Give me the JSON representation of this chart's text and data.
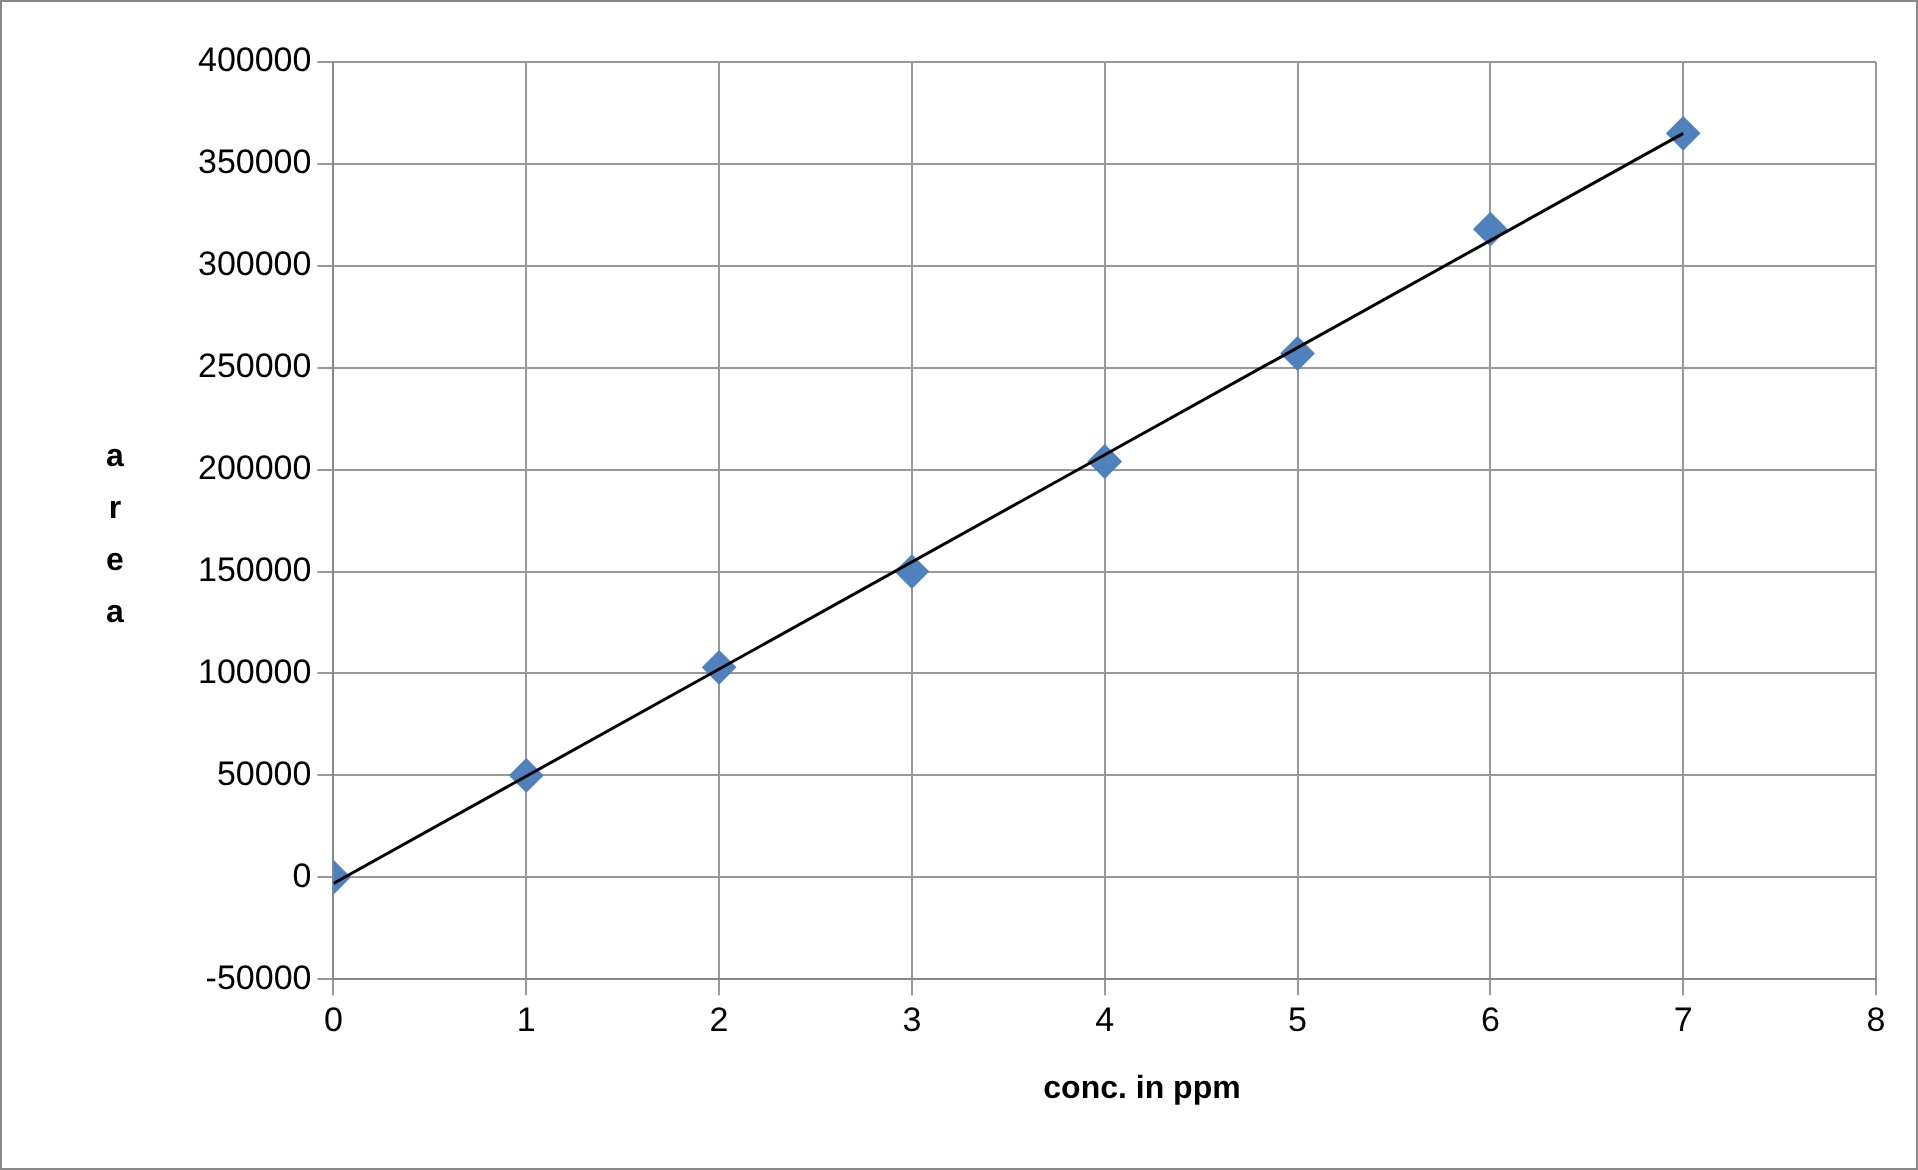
{
  "chart_data": {
    "type": "scatter",
    "xlabel": "conc. in ppm",
    "ylabel": "area",
    "series": [
      {
        "type": "scatter",
        "color": "#4f81bd",
        "x": [
          0,
          1,
          2,
          3,
          4,
          5,
          6,
          7
        ],
        "values": [
          0,
          50000,
          103000,
          150000,
          204000,
          257000,
          318000,
          365000
        ],
        "marker": "diamond"
      },
      {
        "type": "line",
        "color": "#000000",
        "x": [
          0,
          7
        ],
        "values": [
          -3000,
          365000
        ],
        "marker": "none",
        "line_style": "solid"
      }
    ],
    "xlim": [
      0,
      8
    ],
    "xticks": [
      0,
      1,
      2,
      3,
      4,
      5,
      6,
      7,
      8
    ],
    "ylim": [
      -50000,
      400000
    ],
    "yticks": [
      -50000,
      0,
      50000,
      100000,
      150000,
      200000,
      250000,
      300000,
      350000,
      400000
    ],
    "grid": true,
    "legend": false
  }
}
